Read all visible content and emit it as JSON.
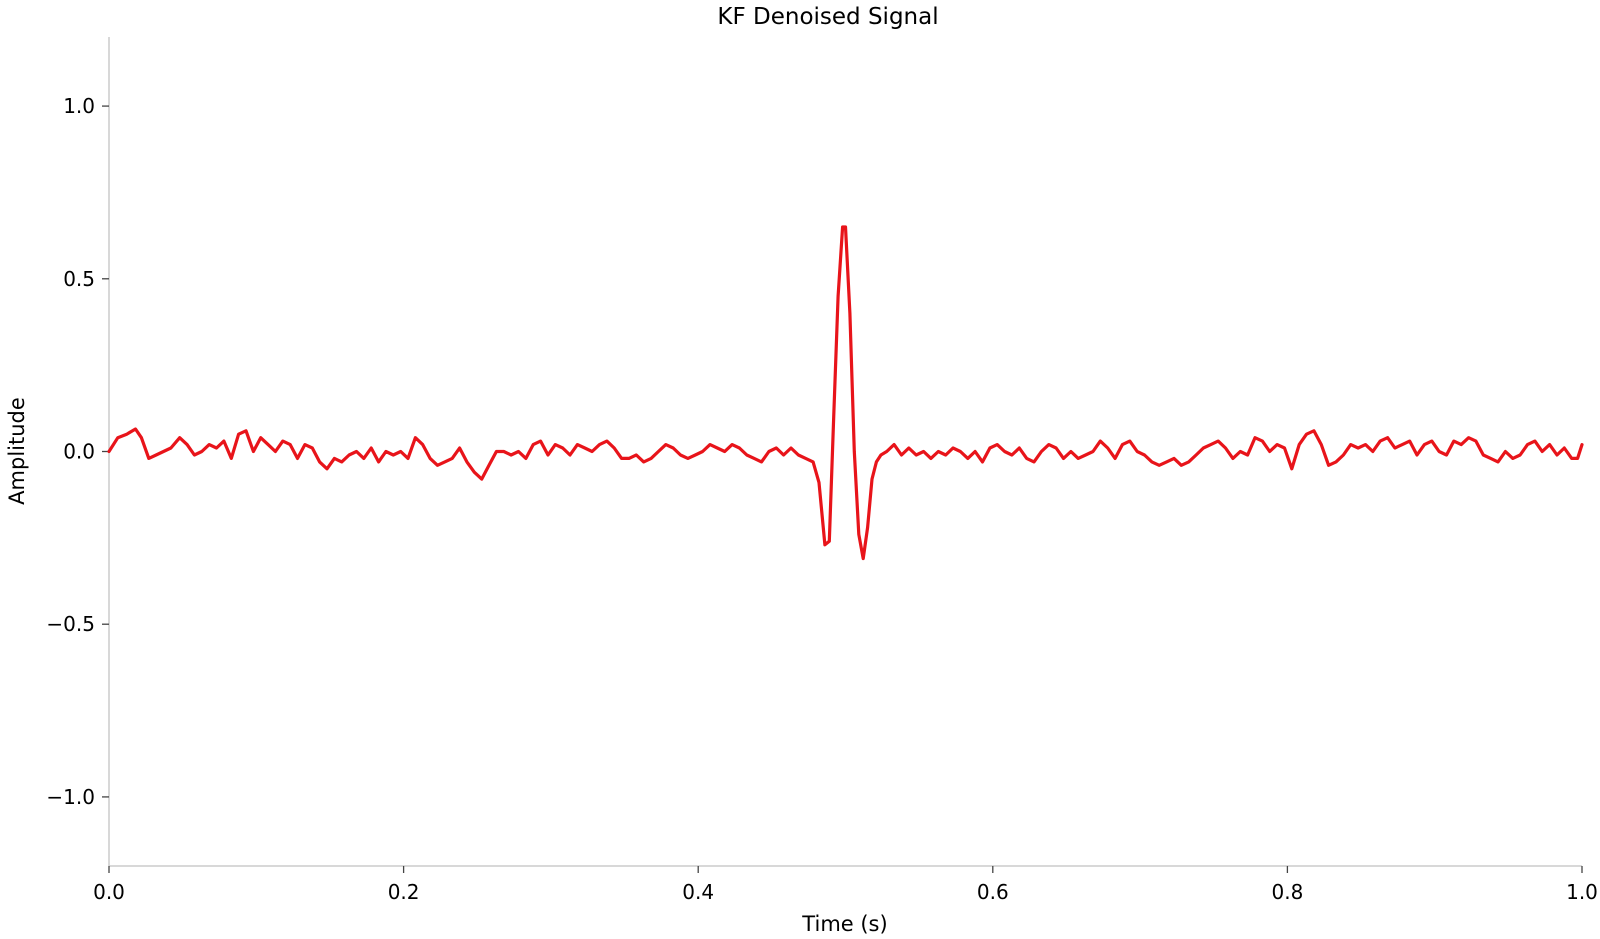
{
  "chart_data": {
    "type": "line",
    "title": "KF Denoised Signal",
    "xlabel": "Time (s)",
    "ylabel": "Amplitude",
    "xlim": [
      0.0,
      1.0
    ],
    "ylim": [
      -1.2,
      1.2
    ],
    "x_ticks": [
      0.0,
      0.2,
      0.4,
      0.6,
      0.8,
      1.0
    ],
    "x_tick_labels": [
      "0.0",
      "0.2",
      "0.4",
      "0.6",
      "0.8",
      "1.0"
    ],
    "y_ticks": [
      -1.0,
      -0.5,
      0.0,
      0.5,
      1.0
    ],
    "y_tick_labels": [
      "−1.0",
      "−0.5",
      "0.0",
      "0.5",
      "1.0"
    ],
    "grid": false,
    "legend": false,
    "spines": [
      "left",
      "bottom"
    ],
    "series": [
      {
        "color": "#e8141a",
        "x": [
          0.0,
          0.006,
          0.012,
          0.018,
          0.022,
          0.027,
          0.032,
          0.037,
          0.042,
          0.048,
          0.053,
          0.058,
          0.063,
          0.068,
          0.073,
          0.078,
          0.083,
          0.088,
          0.093,
          0.098,
          0.103,
          0.108,
          0.113,
          0.118,
          0.123,
          0.128,
          0.133,
          0.138,
          0.143,
          0.148,
          0.153,
          0.158,
          0.163,
          0.168,
          0.173,
          0.178,
          0.183,
          0.188,
          0.193,
          0.198,
          0.203,
          0.208,
          0.213,
          0.218,
          0.223,
          0.228,
          0.233,
          0.238,
          0.243,
          0.248,
          0.253,
          0.258,
          0.263,
          0.268,
          0.273,
          0.278,
          0.283,
          0.288,
          0.293,
          0.298,
          0.303,
          0.308,
          0.313,
          0.318,
          0.323,
          0.328,
          0.333,
          0.338,
          0.343,
          0.348,
          0.353,
          0.358,
          0.363,
          0.368,
          0.373,
          0.378,
          0.383,
          0.388,
          0.393,
          0.398,
          0.403,
          0.408,
          0.413,
          0.418,
          0.423,
          0.428,
          0.433,
          0.438,
          0.443,
          0.448,
          0.453,
          0.458,
          0.463,
          0.468,
          0.473,
          0.478,
          0.482,
          0.486,
          0.489,
          0.492,
          0.495,
          0.498,
          0.5,
          0.503,
          0.506,
          0.509,
          0.512,
          0.515,
          0.518,
          0.521,
          0.524,
          0.528,
          0.533,
          0.538,
          0.543,
          0.548,
          0.553,
          0.558,
          0.563,
          0.568,
          0.573,
          0.578,
          0.583,
          0.588,
          0.593,
          0.598,
          0.603,
          0.608,
          0.613,
          0.618,
          0.623,
          0.628,
          0.633,
          0.638,
          0.643,
          0.648,
          0.653,
          0.658,
          0.663,
          0.668,
          0.673,
          0.678,
          0.683,
          0.688,
          0.693,
          0.698,
          0.703,
          0.708,
          0.713,
          0.718,
          0.723,
          0.728,
          0.733,
          0.738,
          0.743,
          0.748,
          0.753,
          0.758,
          0.763,
          0.768,
          0.773,
          0.778,
          0.783,
          0.788,
          0.793,
          0.798,
          0.803,
          0.808,
          0.813,
          0.818,
          0.823,
          0.828,
          0.833,
          0.838,
          0.843,
          0.848,
          0.853,
          0.858,
          0.863,
          0.868,
          0.873,
          0.878,
          0.883,
          0.888,
          0.893,
          0.898,
          0.903,
          0.908,
          0.913,
          0.918,
          0.923,
          0.928,
          0.933,
          0.938,
          0.943,
          0.948,
          0.953,
          0.958,
          0.963,
          0.968,
          0.973,
          0.978,
          0.983,
          0.988,
          0.993,
          0.997,
          1.0
        ],
        "y": [
          0.0,
          0.04,
          0.05,
          0.065,
          0.04,
          -0.02,
          -0.01,
          0.0,
          0.01,
          0.04,
          0.02,
          -0.01,
          0.0,
          0.02,
          0.01,
          0.03,
          -0.02,
          0.05,
          0.06,
          0.0,
          0.04,
          0.02,
          0.0,
          0.03,
          0.02,
          -0.02,
          0.02,
          0.01,
          -0.03,
          -0.05,
          -0.02,
          -0.03,
          -0.01,
          0.0,
          -0.02,
          0.01,
          -0.03,
          0.0,
          -0.01,
          0.0,
          -0.02,
          0.04,
          0.02,
          -0.02,
          -0.04,
          -0.03,
          -0.02,
          0.01,
          -0.03,
          -0.06,
          -0.08,
          -0.04,
          0.0,
          0.0,
          -0.01,
          0.0,
          -0.02,
          0.02,
          0.03,
          -0.01,
          0.02,
          0.01,
          -0.01,
          0.02,
          0.01,
          0.0,
          0.02,
          0.03,
          0.01,
          -0.02,
          -0.02,
          -0.01,
          -0.03,
          -0.02,
          0.0,
          0.02,
          0.01,
          -0.01,
          -0.02,
          -0.01,
          0.0,
          0.02,
          0.01,
          0.0,
          0.02,
          0.01,
          -0.01,
          -0.02,
          -0.03,
          0.0,
          0.01,
          -0.01,
          0.01,
          -0.01,
          -0.02,
          -0.03,
          -0.09,
          -0.27,
          -0.26,
          0.1,
          0.45,
          0.65,
          0.65,
          0.4,
          0.0,
          -0.24,
          -0.31,
          -0.22,
          -0.08,
          -0.03,
          -0.01,
          0.0,
          0.02,
          -0.01,
          0.01,
          -0.01,
          0.0,
          -0.02,
          0.0,
          -0.01,
          0.01,
          0.0,
          -0.02,
          0.0,
          -0.03,
          0.01,
          0.02,
          0.0,
          -0.01,
          0.01,
          -0.02,
          -0.03,
          0.0,
          0.02,
          0.01,
          -0.02,
          0.0,
          -0.02,
          -0.01,
          0.0,
          0.03,
          0.01,
          -0.02,
          0.02,
          0.03,
          0.0,
          -0.01,
          -0.03,
          -0.04,
          -0.03,
          -0.02,
          -0.04,
          -0.03,
          -0.01,
          0.01,
          0.02,
          0.03,
          0.01,
          -0.02,
          0.0,
          -0.01,
          0.04,
          0.03,
          0.0,
          0.02,
          0.01,
          -0.05,
          0.02,
          0.05,
          0.06,
          0.02,
          -0.04,
          -0.03,
          -0.01,
          0.02,
          0.01,
          0.02,
          0.0,
          0.03,
          0.04,
          0.01,
          0.02,
          0.03,
          -0.01,
          0.02,
          0.03,
          0.0,
          -0.01,
          0.03,
          0.02,
          0.04,
          0.03,
          -0.01,
          -0.02,
          -0.03,
          0.0,
          -0.02,
          -0.01,
          0.02,
          0.03,
          0.0,
          0.02,
          -0.01,
          0.01,
          -0.02,
          -0.02,
          0.02
        ]
      }
    ]
  }
}
